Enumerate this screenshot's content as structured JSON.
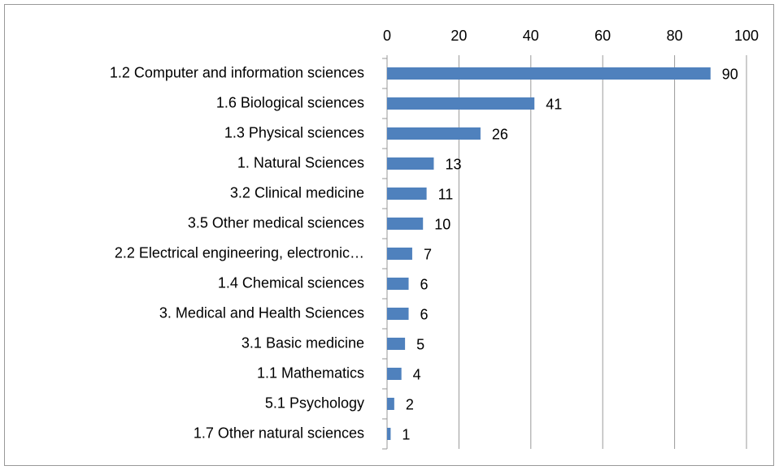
{
  "chart_data": {
    "type": "bar",
    "orientation": "horizontal",
    "categories": [
      "1.2 Computer and information sciences",
      "1.6 Biological sciences",
      "1.3 Physical sciences",
      "1. Natural Sciences",
      "3.2 Clinical medicine",
      "3.5 Other medical sciences",
      "2.2 Electrical engineering, electronic…",
      "1.4 Chemical sciences",
      "3. Medical and Health Sciences",
      "3.1 Basic medicine",
      "1.1 Mathematics",
      "5.1 Psychology",
      "1.7 Other natural sciences"
    ],
    "values": [
      90,
      41,
      26,
      13,
      11,
      10,
      7,
      6,
      6,
      5,
      4,
      2,
      1
    ],
    "color": "#4f81bd",
    "xlim": [
      0,
      100
    ],
    "xticks": [
      0,
      20,
      40,
      60,
      80,
      100
    ],
    "grid": true
  }
}
